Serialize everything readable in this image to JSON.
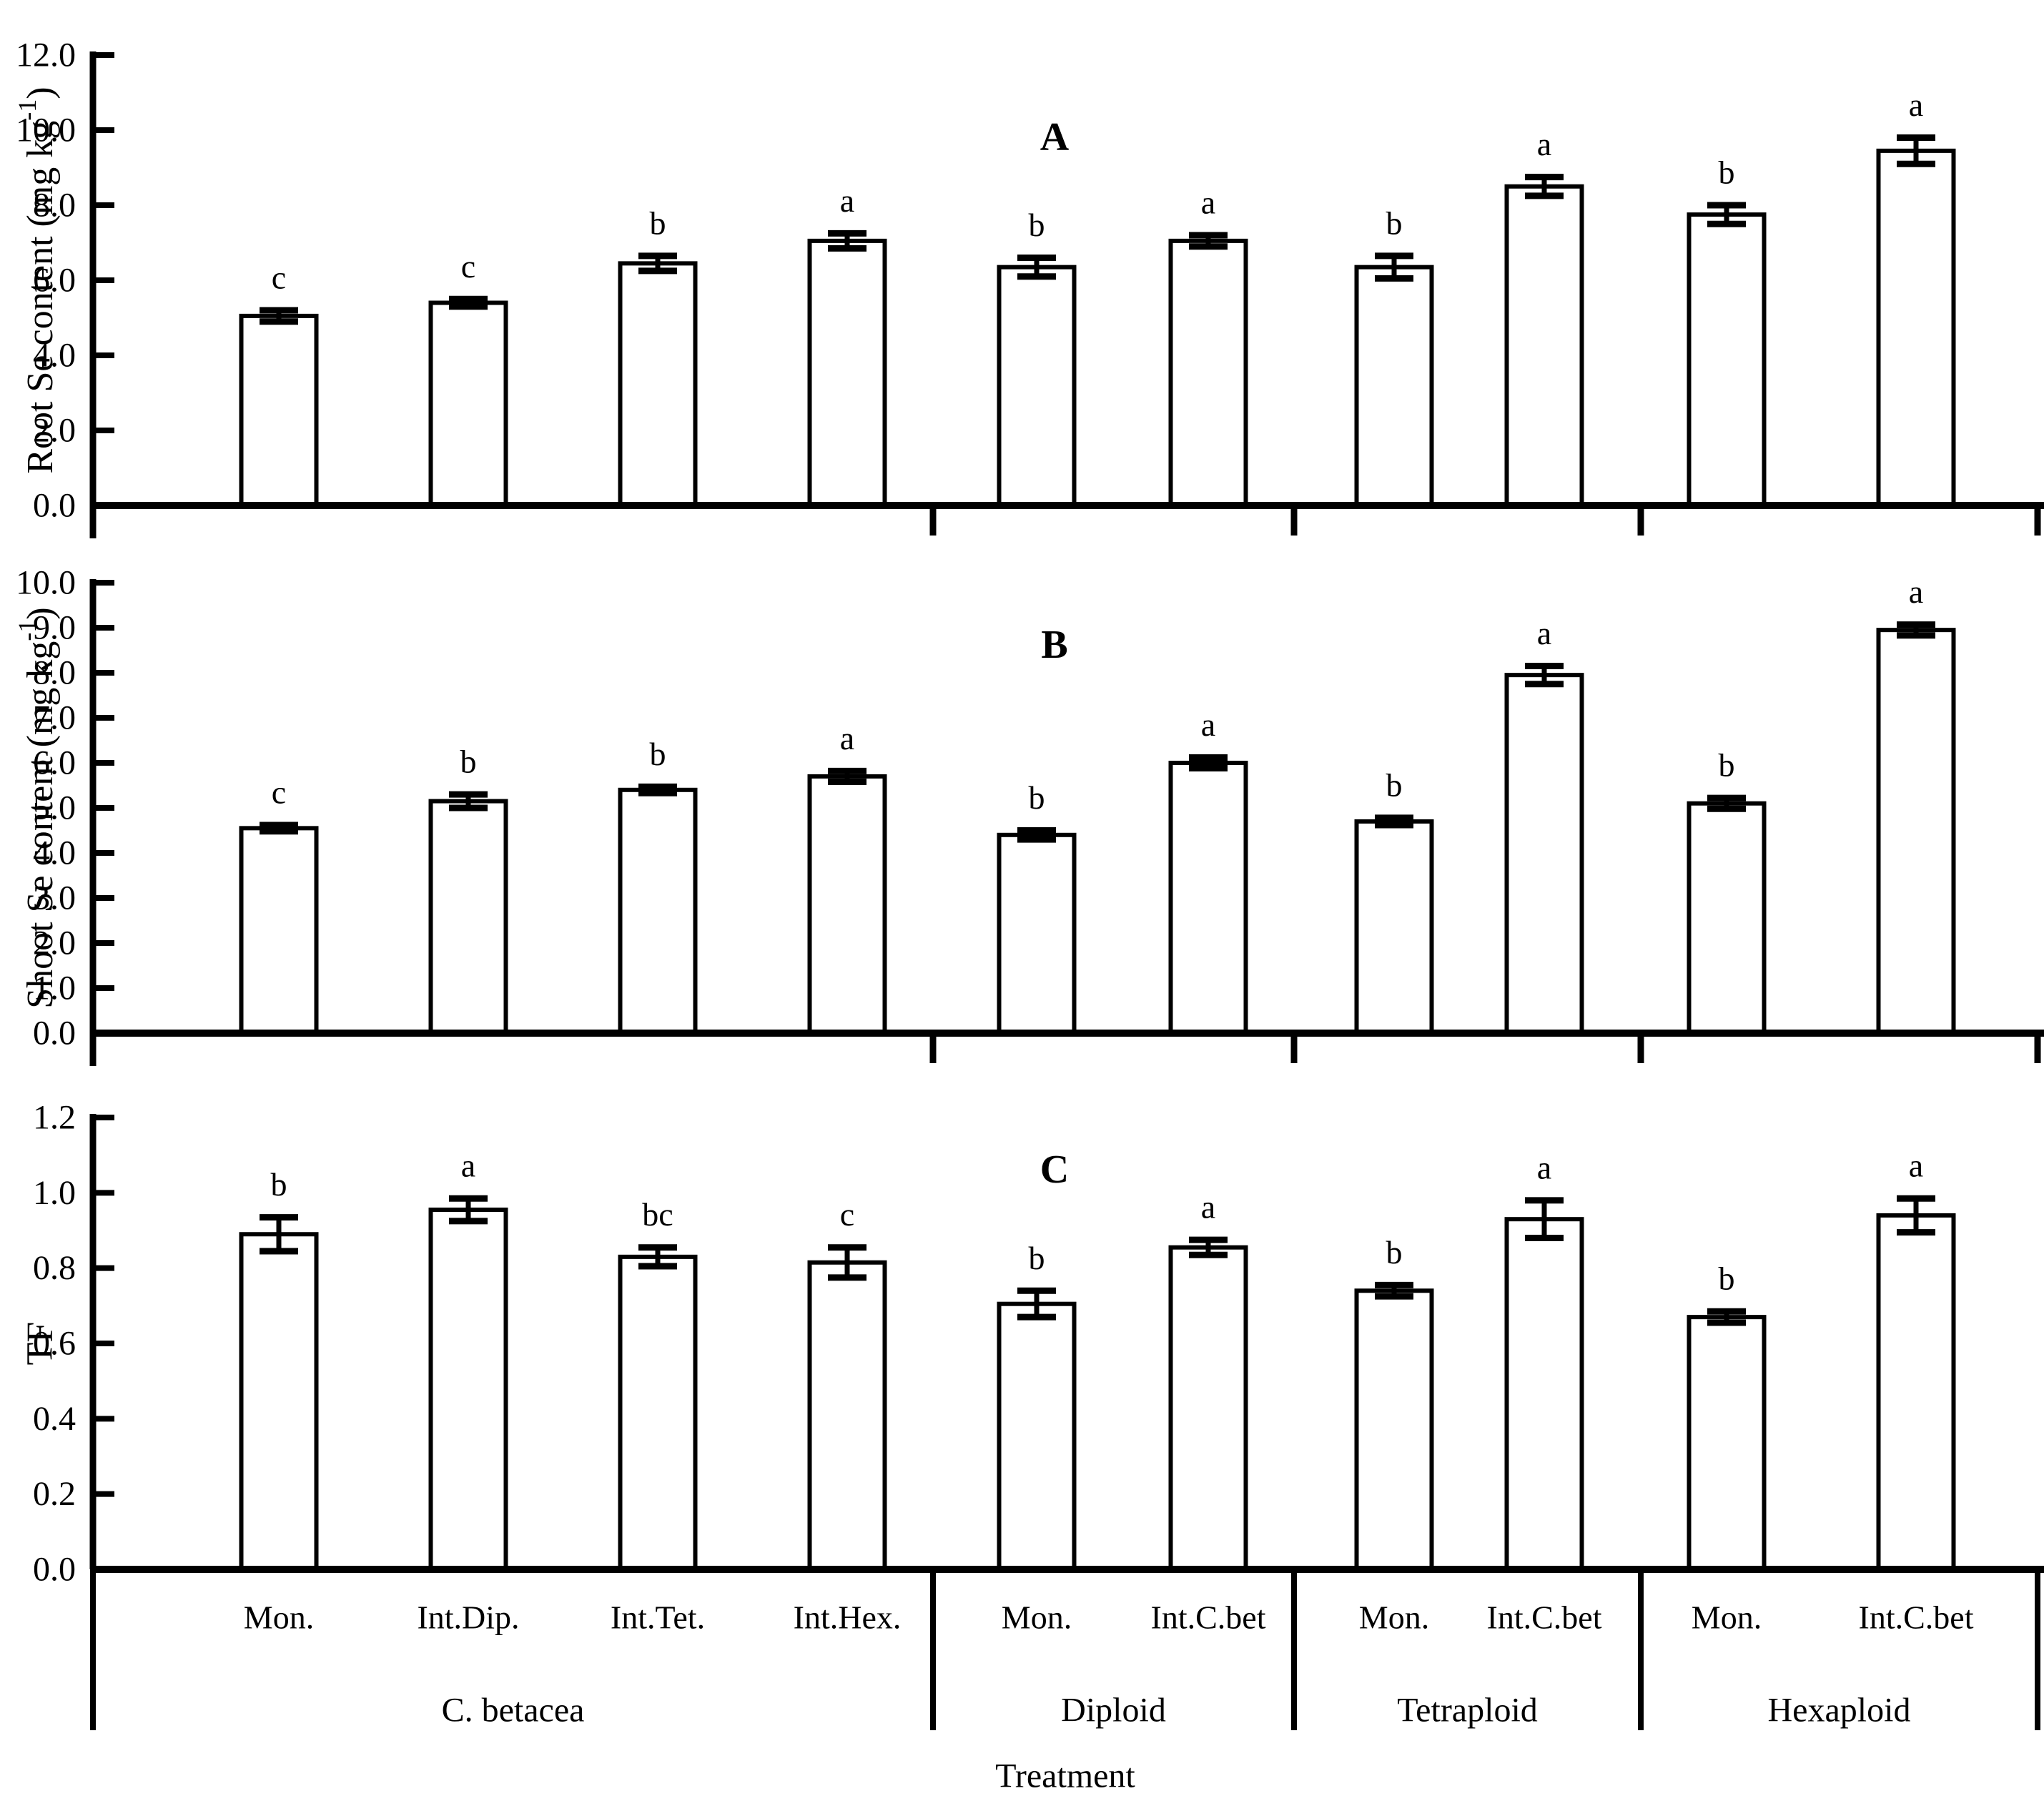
{
  "figure": {
    "xlabel": "Treatment",
    "panel_labels": [
      "A",
      "B",
      "C"
    ],
    "group_labels": [
      "C. betacea",
      "Diploid",
      "Tetraploid",
      "Hexaploid"
    ],
    "categories": [
      "Mon.",
      "Int.Dip.",
      "Int.Tet.",
      "Int.Hex.",
      "Mon.",
      "Int.C.bet",
      "Mon.",
      "Int.C.bet",
      "Mon.",
      "Int.C.bet"
    ],
    "colors": {
      "bar_fill": "#ffffff",
      "bar_stroke": "#000000",
      "text": "#000000",
      "background": "#ffffff"
    }
  },
  "chart_data": [
    {
      "type": "bar",
      "panel_label": "A",
      "title": "A",
      "xlabel": "Treatment",
      "ylabel": "Root Se content (mg kg⁻¹)",
      "ylim": [
        0,
        12
      ],
      "ytick_step": 2,
      "ytick_labels": [
        "0.0",
        "2.0",
        "4.0",
        "6.0",
        "8.0",
        "10.0",
        "12.0"
      ],
      "grid": false,
      "legend": "none",
      "error_bars": true,
      "groups": [
        {
          "label": "C. betacea",
          "count": 4
        },
        {
          "label": "Diploid",
          "count": 2
        },
        {
          "label": "Tetraploid",
          "count": 2
        },
        {
          "label": "Hexaploid",
          "count": 2
        }
      ],
      "categories": [
        "Mon.",
        "Int.Dip.",
        "Int.Tet.",
        "Int.Hex.",
        "Mon.",
        "Int.C.bet",
        "Mon.",
        "Int.C.bet",
        "Mon.",
        "Int.C.bet"
      ],
      "values": [
        5.05,
        5.4,
        6.45,
        7.05,
        6.35,
        7.05,
        6.35,
        8.5,
        7.75,
        9.45
      ],
      "errors": [
        0.15,
        0.1,
        0.2,
        0.2,
        0.25,
        0.15,
        0.3,
        0.25,
        0.25,
        0.35
      ],
      "sig_letters": [
        "c",
        "c",
        "b",
        "a",
        "b",
        "a",
        "b",
        "a",
        "b",
        "a"
      ]
    },
    {
      "type": "bar",
      "panel_label": "B",
      "xlabel": "Treatment",
      "ylabel": "Shoot Se content (mg kg⁻¹)",
      "ylim": [
        0,
        10
      ],
      "ytick_step": 1,
      "ytick_labels": [
        "0.0",
        "1.0",
        "2.0",
        "3.0",
        "4.0",
        "5.0",
        "6.0",
        "7.0",
        "8.0",
        "9.0",
        "10.0"
      ],
      "grid": false,
      "legend": "none",
      "error_bars": true,
      "groups": [
        {
          "label": "C. betacea",
          "count": 4
        },
        {
          "label": "Diploid",
          "count": 2
        },
        {
          "label": "Tetraploid",
          "count": 2
        },
        {
          "label": "Hexaploid",
          "count": 2
        }
      ],
      "categories": [
        "Mon.",
        "Int.Dip.",
        "Int.Tet.",
        "Int.Hex.",
        "Mon.",
        "Int.C.bet",
        "Mon.",
        "Int.C.bet",
        "Mon.",
        "Int.C.bet"
      ],
      "values": [
        4.55,
        5.15,
        5.4,
        5.7,
        4.4,
        6.0,
        4.7,
        7.95,
        5.1,
        8.95
      ],
      "errors": [
        0.07,
        0.15,
        0.07,
        0.12,
        0.1,
        0.12,
        0.08,
        0.2,
        0.12,
        0.12
      ],
      "sig_letters": [
        "c",
        "b",
        "b",
        "a",
        "b",
        "a",
        "b",
        "a",
        "b",
        "a"
      ]
    },
    {
      "type": "bar",
      "panel_label": "C",
      "xlabel": "Treatment",
      "ylabel": "TF",
      "ylim": [
        0,
        1.2
      ],
      "ytick_step": 0.2,
      "ytick_labels": [
        "0.0",
        "0.2",
        "0.4",
        "0.6",
        "0.8",
        "1.0",
        "1.2"
      ],
      "grid": false,
      "legend": "none",
      "error_bars": true,
      "groups": [
        {
          "label": "C. betacea",
          "count": 4
        },
        {
          "label": "Diploid",
          "count": 2
        },
        {
          "label": "Tetraploid",
          "count": 2
        },
        {
          "label": "Hexaploid",
          "count": 2
        }
      ],
      "categories": [
        "Mon.",
        "Int.Dip.",
        "Int.Tet.",
        "Int.Hex.",
        "Mon.",
        "Int.C.bet",
        "Mon.",
        "Int.C.bet",
        "Mon.",
        "Int.C.bet"
      ],
      "values": [
        0.89,
        0.955,
        0.83,
        0.815,
        0.705,
        0.855,
        0.74,
        0.93,
        0.67,
        0.94
      ],
      "errors": [
        0.045,
        0.03,
        0.025,
        0.04,
        0.035,
        0.02,
        0.015,
        0.05,
        0.015,
        0.045
      ],
      "sig_letters": [
        "b",
        "a",
        "bc",
        "c",
        "b",
        "a",
        "b",
        "a",
        "b",
        "a"
      ]
    }
  ]
}
